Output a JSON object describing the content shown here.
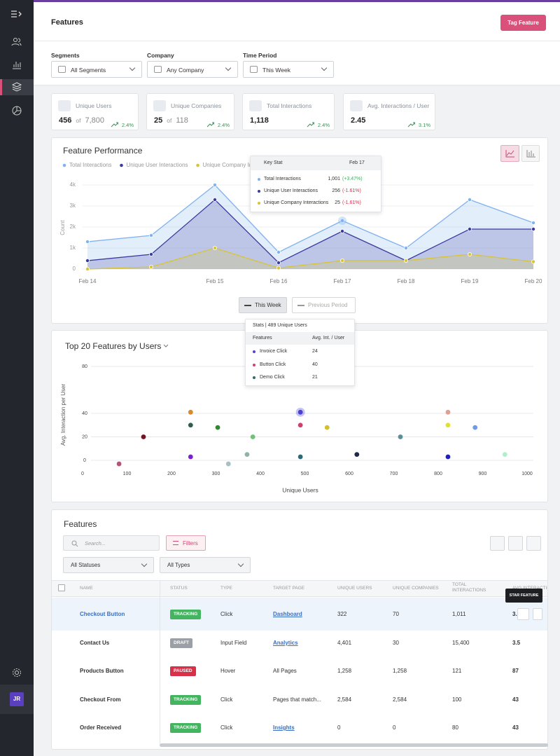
{
  "header": {
    "title": "Features",
    "button": "Tag Feature"
  },
  "sidebar": {
    "avatar": "JR"
  },
  "filters": [
    {
      "label": "Segments",
      "value": "All Segments"
    },
    {
      "label": "Company",
      "value": "Any Company"
    },
    {
      "label": "Time Period",
      "value": "This Week"
    }
  ],
  "stats": [
    {
      "label": "Unique Users",
      "value": 456,
      "of": "of",
      "total": "7,800",
      "change": "2.4%"
    },
    {
      "label": "Unique Companies",
      "value": 25,
      "of": "of",
      "total": 118,
      "change": "2.4%"
    },
    {
      "label": "Total Interactions",
      "value": "1,118",
      "change": "2.4%"
    },
    {
      "label": "Avg. Interactions / User",
      "value": 2.45,
      "change": "3.1%"
    }
  ],
  "chart_data": [
    {
      "type": "line",
      "title": "Feature Performance",
      "y_label": "Count",
      "categories": [
        "Feb 14",
        null,
        "Feb 15",
        "Feb 16",
        "Feb 17",
        "Feb 18",
        "Feb 19",
        "Feb 20"
      ],
      "series": [
        {
          "name": "Total Interactions",
          "color": "#7fb2ef",
          "values": [
            1300,
            1600,
            4000,
            800,
            2300,
            1000,
            3300,
            2200
          ]
        },
        {
          "name": "Unique User Interactions",
          "color": "#3d3a9e",
          "values": [
            400,
            700,
            3300,
            300,
            1800,
            400,
            1900,
            1900
          ]
        },
        {
          "name": "Unique Company Interactions",
          "color": "#d8c437",
          "values": [
            0,
            100,
            1000,
            50,
            400,
            400,
            700,
            350
          ]
        }
      ],
      "ylim": [
        0,
        4300
      ],
      "yticks": [
        0,
        {
          "value": 1000,
          "label": "1k"
        },
        {
          "value": 2000,
          "label": "2k"
        },
        {
          "value": 3000,
          "label": "3k"
        },
        {
          "value": 4000,
          "label": "4k"
        }
      ],
      "grid": true
    },
    {
      "type": "scatter",
      "title": "Top 20 Features by Users",
      "x_label": "Unique Users",
      "y_label": "Avg. Interaction per User",
      "x": [
        82,
        137,
        243,
        243,
        243,
        304,
        328,
        370,
        383,
        490,
        490,
        490,
        550,
        617,
        715,
        822,
        822,
        822,
        883,
        950
      ],
      "values": [
        -3,
        20,
        41,
        30,
        3,
        28,
        -3,
        5,
        20,
        41,
        30,
        3,
        28,
        5,
        20,
        41,
        30,
        3,
        28,
        5
      ],
      "colors": [
        "#b5547a",
        "#7a1020",
        "#d98a2e",
        "#2f5d50",
        "#7b1fd0",
        "#2f8a2f",
        "#a9bfc6",
        "#8fb3a6",
        "#6fc07a",
        "#4b3fd6",
        "#d0406a",
        "#2c6a7a",
        "#d4c12a",
        "#1f2a4a",
        "#5a8f9a",
        "#e0a090",
        "#e0e030",
        "#2020c0",
        "#6f9ae8",
        "#b0f0c8"
      ],
      "xlim": [
        0,
        1000
      ],
      "xticks": [
        0,
        100,
        200,
        300,
        400,
        500,
        600,
        700,
        800,
        900,
        1000
      ],
      "ylim": [
        -5,
        85
      ],
      "yticks": [
        0,
        20,
        40,
        80
      ],
      "grid": true
    }
  ],
  "performance_tooltip": {
    "title": "Key Stat",
    "date": "Feb 17",
    "rows": [
      {
        "name": "Total Interactions",
        "value": "1,001",
        "change": "(+3.47%)"
      },
      {
        "name": "Unique User Interactions",
        "value": 256,
        "change": "(-1.61%)"
      },
      {
        "name": "Unique Company Interactions",
        "value": 25,
        "change": "(-1.61%)"
      }
    ]
  },
  "period_toggle": [
    "This Week",
    "Previous Period"
  ],
  "scatter_tooltip": {
    "title": "Stats | 489 Unique Users",
    "columns": [
      "Features",
      "Avg. Int. / User"
    ],
    "rows": [
      {
        "name": "Invoice Click",
        "value": 24,
        "color": "#5b3fd0"
      },
      {
        "name": "Button Click",
        "value": 40,
        "color": "#d0406a"
      },
      {
        "name": "Demo Click",
        "value": 21,
        "color": "#2c6a7a"
      }
    ]
  },
  "table": {
    "title": "Features",
    "search_placeholder": "Search...",
    "filter_button": "Filters",
    "dropdowns": [
      "All Statuses",
      "All Types"
    ],
    "columns": [
      "NAME",
      "STATUS",
      "TYPE",
      "TARGET PAGE",
      "UNIQUE USERS",
      "UNIQUE COMPANIES",
      "TOTAL INTERACTIONS",
      "AVG INTERACTIONS"
    ],
    "tooltip": "STAR FEATURE",
    "rows": [
      {
        "cells": [
          "Checkout Button",
          "TRACKING",
          "Click",
          "Dashboard",
          322,
          70,
          "1,011",
          "3."
        ],
        "status_color": "#45b460",
        "link": true,
        "selected": true
      },
      {
        "cells": [
          "Contact Us",
          "DRAFT",
          "Input Field",
          "Analytics",
          "4,401",
          30,
          "15,400",
          3.5
        ],
        "status_color": "#9aa0a6",
        "link": true,
        "selected": false
      },
      {
        "cells": [
          "Products Button",
          "PAUSED",
          "Hover",
          "All Pages",
          "1,258",
          "1,258",
          121,
          87
        ],
        "status_color": "#d9304a",
        "link": false,
        "selected": false
      },
      {
        "cells": [
          "Checkout From",
          "TRACKING",
          "Click",
          "Pages that match...",
          "2,584",
          "2,584",
          100,
          43
        ],
        "status_color": "#45b460",
        "link": false,
        "selected": false
      },
      {
        "cells": [
          "Order Received",
          "TRACKING",
          "Click",
          "Insights",
          0,
          0,
          80,
          43
        ],
        "status_color": "#45b460",
        "link": true,
        "selected": false
      }
    ]
  }
}
